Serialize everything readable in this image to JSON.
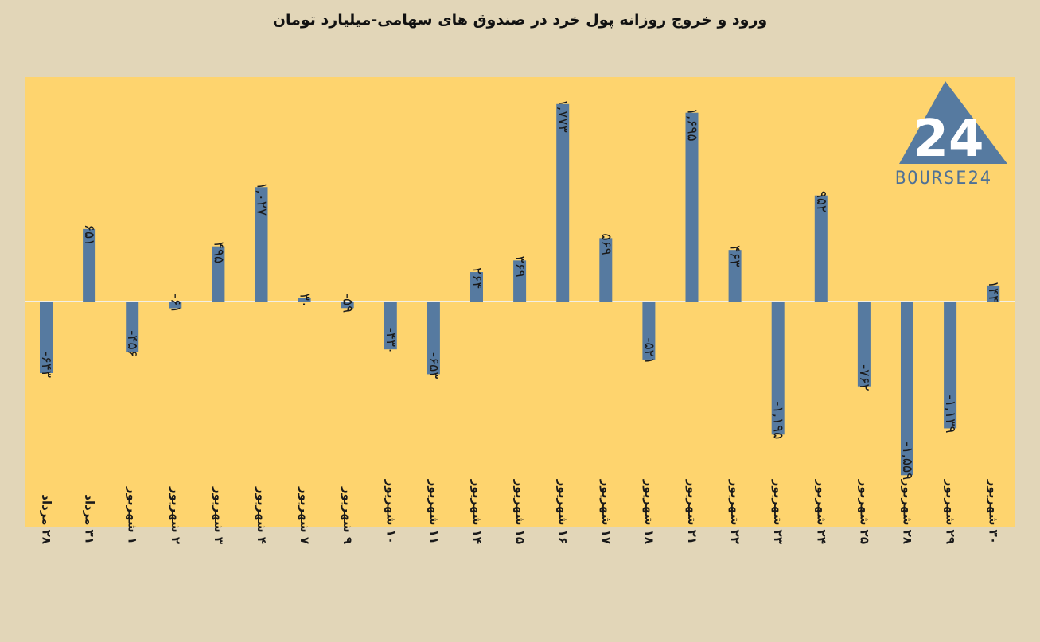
{
  "title": "ورود و خروج روزانه پول خرد در صندوق های سهامی-میلیارد تومان",
  "logo": {
    "mark": "24",
    "text": "BOURSE24"
  },
  "colors": {
    "background": "#e2d6b8",
    "plot": "#fed46e",
    "bar": "#567aa0",
    "zero_line": "#f2efe6"
  },
  "chart_data": {
    "type": "bar",
    "title": "ورود و خروج روزانه پول خرد در صندوق های سهامی-میلیارد تومان",
    "categories": [
      "۲۸ مرداد",
      "۳۱ مرداد",
      "۱ شهریور",
      "۲ شهریور",
      "۳ شهریور",
      "۴ شهریور",
      "۷ شهریور",
      "۹ شهریور",
      "۱۰ شهریور",
      "۱۱ شهریور",
      "۱۴ شهریور",
      "۱۵ شهریور",
      "۱۶ شهریور",
      "۱۷ شهریور",
      "۱۸ شهریور",
      "۲۱ شهریور",
      "۲۲ شهریور",
      "۲۳ شهریور",
      "۲۴ شهریور",
      "۲۵ شهریور",
      "۲۸ شهریور",
      "۲۹ شهریور",
      "۳۰ شهریور"
    ],
    "values": [
      -643,
      651,
      -456,
      -61,
      495,
      1027,
      30,
      -59,
      -430,
      -653,
      264,
      369,
      1773,
      569,
      -521,
      1695,
      463,
      -1195,
      952,
      -762,
      -1559,
      -1139,
      144
    ],
    "labels": [
      "-۶۴۳",
      "۶۵۱",
      "-۴۵۶",
      "-۶۱",
      "۴۹۵",
      "۱,۰۲۷",
      "۳۰",
      "-۵۹",
      "-۴۳۰",
      "-۶۵۳",
      "۲۶۴",
      "۳۶۹",
      "۱,۷۷۳",
      "۵۶۹",
      "-۵۲۱",
      "۱,۶۹۵",
      "۴۶۳",
      "-۱,۱۹۵",
      "۹۵۲",
      "-۷۶۲",
      "-۱,۵۵۹",
      "-۱,۱۳۹",
      "۱۴۴"
    ],
    "ylim": [
      -2000,
      2000
    ],
    "grid": false,
    "legend": "none"
  }
}
